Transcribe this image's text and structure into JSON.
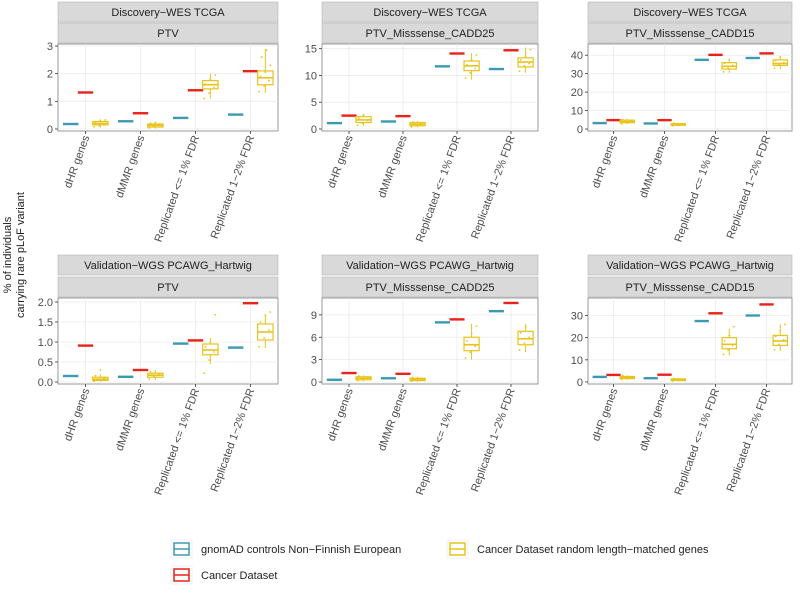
{
  "colors": {
    "gnomad": "#3b9ab2",
    "cancer": "#e8231a",
    "random": "#e8c31a",
    "strip": "#d9d9d9",
    "panel": "#ffffff",
    "grid": "#ebebeb",
    "text": "#222222"
  },
  "y_axis_label_line1": "% of individuals",
  "y_axis_label_line2": "carrying rare pLoF variant",
  "legend": {
    "items": [
      {
        "key": "gnomad",
        "label": "gnomAD controls Non−Finnish European"
      },
      {
        "key": "cancer",
        "label": "Cancer Dataset"
      },
      {
        "key": "random",
        "label": "Cancer Dataset random length−matched genes"
      }
    ]
  },
  "chart_data": [
    {
      "type": "box",
      "strip_top": "Discovery−WES TCGA",
      "strip_sub": "PTV",
      "categories": [
        "dHR genes",
        "dMMR genes",
        "Replicated <= 1% FDR",
        "Replicated 1−2% FDR"
      ],
      "ylim": [
        0,
        3
      ],
      "yticks": [
        0,
        1,
        2,
        3
      ],
      "gnomad": [
        0.18,
        0.28,
        0.4,
        0.52
      ],
      "cancer": [
        1.32,
        0.57,
        1.4,
        2.09
      ],
      "random": [
        {
          "min": 0.05,
          "q1": 0.15,
          "median": 0.2,
          "q3": 0.27,
          "max": 0.35,
          "points": [
            0.08,
            0.12,
            0.18,
            0.22,
            0.3,
            0.33
          ]
        },
        {
          "min": 0.02,
          "q1": 0.07,
          "median": 0.13,
          "q3": 0.18,
          "max": 0.25,
          "points": [
            0.04,
            0.09,
            0.14,
            0.2,
            0.23
          ]
        },
        {
          "min": 1.1,
          "q1": 1.45,
          "median": 1.6,
          "q3": 1.75,
          "max": 2.0,
          "points": [
            1.1,
            1.3,
            1.5,
            1.62,
            1.8,
            1.95
          ]
        },
        {
          "min": 1.3,
          "q1": 1.6,
          "median": 1.85,
          "q3": 2.1,
          "max": 2.9,
          "points": [
            1.35,
            1.55,
            1.75,
            1.9,
            2.05,
            2.3,
            2.6,
            2.85
          ]
        }
      ]
    },
    {
      "type": "box",
      "strip_top": "Discovery−WES TCGA",
      "strip_sub": "PTV_Misssense_CADD25",
      "categories": [
        "dHR genes",
        "dMMR genes",
        "Replicated <= 1% FDR",
        "Replicated 1−2% FDR"
      ],
      "ylim": [
        0,
        15.5
      ],
      "yticks": [
        0,
        5,
        10,
        15
      ],
      "gnomad": [
        1.1,
        1.4,
        11.7,
        11.2
      ],
      "cancer": [
        2.5,
        2.4,
        14.1,
        14.7
      ],
      "random": [
        {
          "min": 0.6,
          "q1": 1.2,
          "median": 1.7,
          "q3": 2.3,
          "max": 2.8,
          "points": [
            0.7,
            1.1,
            1.6,
            2.0,
            2.6
          ]
        },
        {
          "min": 0.3,
          "q1": 0.6,
          "median": 0.9,
          "q3": 1.2,
          "max": 1.5,
          "points": [
            0.4,
            0.8,
            1.0,
            1.3
          ]
        },
        {
          "min": 9.2,
          "q1": 10.9,
          "median": 11.8,
          "q3": 12.7,
          "max": 14.2,
          "points": [
            9.5,
            10.5,
            11.3,
            12.0,
            12.9,
            13.8
          ]
        },
        {
          "min": 10.5,
          "q1": 11.6,
          "median": 12.5,
          "q3": 13.3,
          "max": 15.2,
          "points": [
            10.8,
            11.8,
            12.2,
            12.9,
            13.6,
            14.8
          ]
        }
      ]
    },
    {
      "type": "box",
      "strip_top": "Discovery−WES TCGA",
      "strip_sub": "PTV_Misssense_CADD15",
      "categories": [
        "dHR genes",
        "dMMR genes",
        "Replicated <= 1% FDR",
        "Replicated 1−2% FDR"
      ],
      "ylim": [
        0,
        45
      ],
      "yticks": [
        0,
        10,
        20,
        30,
        40
      ],
      "gnomad": [
        3.2,
        3.0,
        37.5,
        38.5
      ],
      "cancer": [
        4.8,
        4.8,
        40.2,
        41.0
      ],
      "random": [
        {
          "min": 2.6,
          "q1": 3.4,
          "median": 4.0,
          "q3": 4.8,
          "max": 5.5,
          "points": [
            2.8,
            3.6,
            4.3,
            5.1
          ]
        },
        {
          "min": 1.5,
          "q1": 2.0,
          "median": 2.4,
          "q3": 2.9,
          "max": 3.4,
          "points": [
            1.7,
            2.3,
            2.7,
            3.2
          ]
        },
        {
          "min": 30.5,
          "q1": 32.5,
          "median": 34.0,
          "q3": 36.0,
          "max": 38.0,
          "points": [
            31.0,
            33.0,
            34.5,
            35.5,
            37.5
          ]
        },
        {
          "min": 32.5,
          "q1": 34.5,
          "median": 35.5,
          "q3": 37.5,
          "max": 39.5,
          "points": [
            33.0,
            35.0,
            36.0,
            37.0,
            39.0
          ]
        }
      ]
    },
    {
      "type": "box",
      "strip_top": "Validation−WGS PCAWG_Hartwig",
      "strip_sub": "PTV",
      "categories": [
        "dHR genes",
        "dMMR genes",
        "Replicated <= 1% FDR",
        "Replicated 1−2% FDR"
      ],
      "ylim": [
        0,
        2.05
      ],
      "yticks": [
        0.0,
        0.5,
        1.0,
        1.5,
        2.0
      ],
      "gnomad": [
        0.15,
        0.13,
        0.96,
        0.86
      ],
      "cancer": [
        0.91,
        0.3,
        1.04,
        1.97
      ],
      "random": [
        {
          "min": 0.01,
          "q1": 0.04,
          "median": 0.07,
          "q3": 0.12,
          "max": 0.2,
          "points": [
            0.02,
            0.06,
            0.1,
            0.16,
            0.3
          ]
        },
        {
          "min": 0.05,
          "q1": 0.12,
          "median": 0.17,
          "q3": 0.22,
          "max": 0.3,
          "points": [
            0.07,
            0.14,
            0.19,
            0.26
          ]
        },
        {
          "min": 0.45,
          "q1": 0.68,
          "median": 0.8,
          "q3": 0.95,
          "max": 1.1,
          "points": [
            0.22,
            0.55,
            0.75,
            0.88,
            1.0,
            1.68
          ]
        },
        {
          "min": 0.85,
          "q1": 1.05,
          "median": 1.25,
          "q3": 1.45,
          "max": 1.7,
          "points": [
            0.88,
            1.1,
            1.3,
            1.5,
            1.65,
            1.75
          ]
        }
      ]
    },
    {
      "type": "box",
      "strip_top": "Validation−WGS PCAWG_Hartwig",
      "strip_sub": "PTV_Misssense_CADD25",
      "categories": [
        "dHR genes",
        "dMMR genes",
        "Replicated <= 1% FDR",
        "Replicated 1−2% FDR"
      ],
      "ylim": [
        0,
        11
      ],
      "yticks": [
        0,
        3,
        6,
        9
      ],
      "gnomad": [
        0.3,
        0.5,
        8.0,
        9.5
      ],
      "cancer": [
        1.2,
        1.1,
        8.4,
        10.6
      ],
      "random": [
        {
          "min": 0.1,
          "q1": 0.3,
          "median": 0.5,
          "q3": 0.7,
          "max": 0.9,
          "points": [
            0.2,
            0.4,
            0.6,
            0.8
          ]
        },
        {
          "min": 0.05,
          "q1": 0.2,
          "median": 0.35,
          "q3": 0.5,
          "max": 0.7,
          "points": [
            0.1,
            0.3,
            0.45,
            0.6
          ]
        },
        {
          "min": 3.0,
          "q1": 4.2,
          "median": 5.0,
          "q3": 6.0,
          "max": 7.8,
          "points": [
            3.2,
            4.0,
            4.8,
            5.5,
            6.5,
            7.5
          ]
        },
        {
          "min": 4.0,
          "q1": 5.0,
          "median": 5.8,
          "q3": 6.8,
          "max": 7.8,
          "points": [
            4.3,
            5.2,
            6.0,
            6.6,
            7.4
          ]
        }
      ]
    },
    {
      "type": "box",
      "strip_top": "Validation−WGS PCAWG_Hartwig",
      "strip_sub": "PTV_Misssense_CADD15",
      "categories": [
        "dHR genes",
        "dMMR genes",
        "Replicated <= 1% FDR",
        "Replicated 1−2% FDR"
      ],
      "ylim": [
        0,
        37
      ],
      "yticks": [
        0,
        10,
        20,
        30
      ],
      "gnomad": [
        2.3,
        1.7,
        27.5,
        30.0
      ],
      "cancer": [
        3.2,
        3.3,
        31.0,
        35.0
      ],
      "random": [
        {
          "min": 1.0,
          "q1": 1.5,
          "median": 2.0,
          "q3": 2.5,
          "max": 3.0,
          "points": [
            1.2,
            1.8,
            2.2,
            2.8
          ]
        },
        {
          "min": 0.3,
          "q1": 0.7,
          "median": 1.0,
          "q3": 1.4,
          "max": 1.8,
          "points": [
            0.5,
            0.9,
            1.2,
            1.6
          ]
        },
        {
          "min": 12.0,
          "q1": 15.0,
          "median": 17.0,
          "q3": 20.0,
          "max": 24.0,
          "points": [
            12.5,
            14.5,
            16.5,
            18.5,
            21.0,
            25.0
          ]
        },
        {
          "min": 14.0,
          "q1": 16.5,
          "median": 18.5,
          "q3": 21.0,
          "max": 26.0,
          "points": [
            14.5,
            17.0,
            19.0,
            20.5,
            23.0,
            26.0
          ]
        }
      ]
    }
  ]
}
